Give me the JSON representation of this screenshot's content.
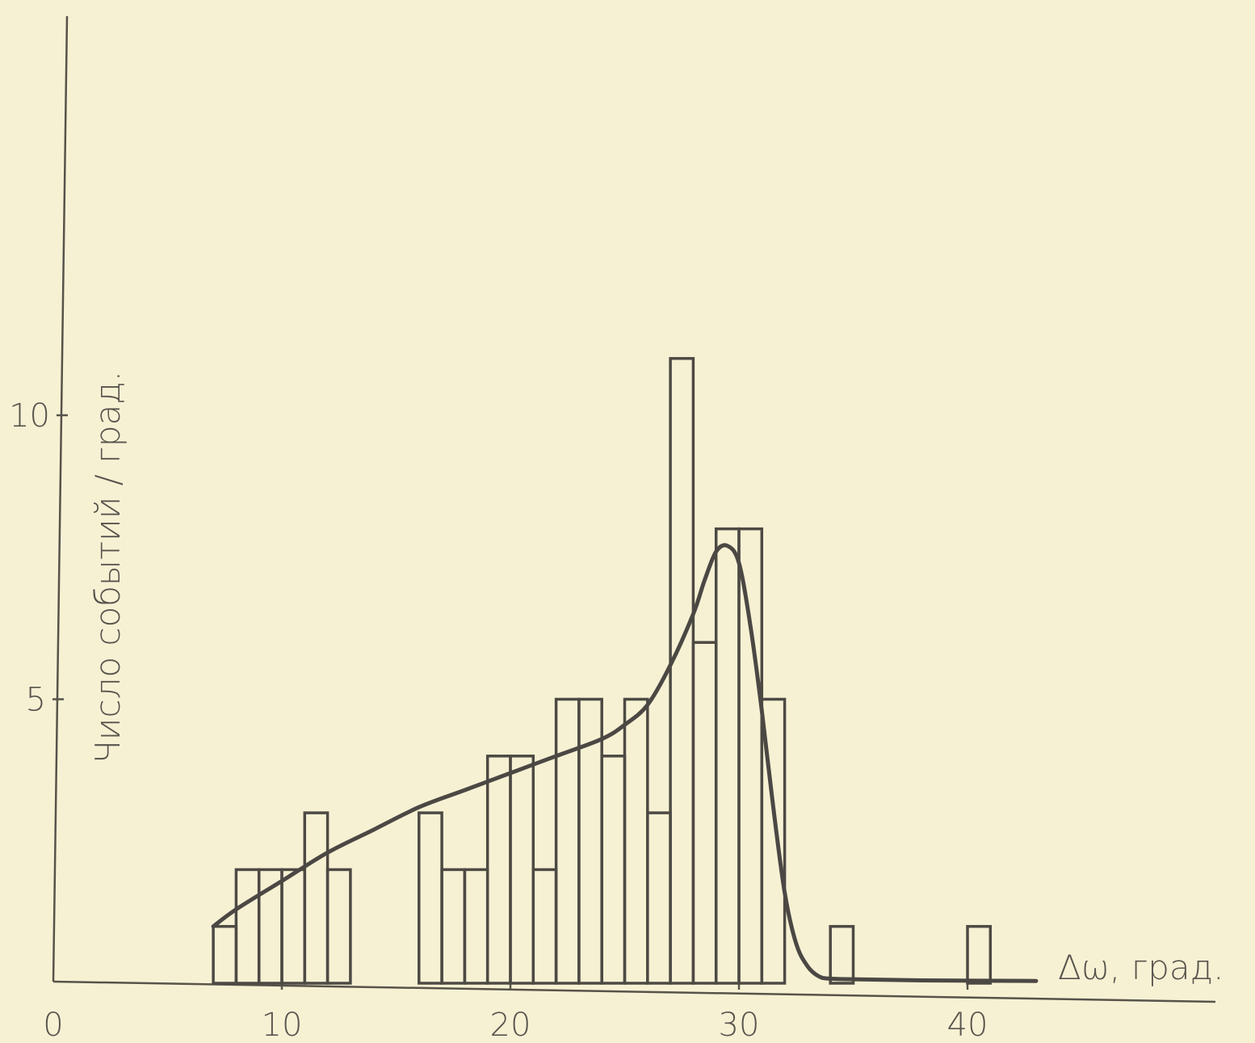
{
  "chart_data": {
    "type": "bar",
    "xlabel": "Δω, град.",
    "ylabel": "Число событий / град.",
    "xlim": [
      0,
      52
    ],
    "ylim": [
      0,
      17.4
    ],
    "x_ticks": [
      {
        "value": 0,
        "label": "0"
      },
      {
        "value": 10,
        "label": "10"
      },
      {
        "value": 20,
        "label": "20"
      },
      {
        "value": 30,
        "label": "30"
      },
      {
        "value": 40,
        "label": "40"
      }
    ],
    "y_ticks": [
      {
        "value": 5,
        "label": "5"
      },
      {
        "value": 10,
        "label": "10"
      }
    ],
    "bin_width": 1,
    "bins": [
      {
        "x0": 7,
        "value": 1
      },
      {
        "x0": 8,
        "value": 2
      },
      {
        "x0": 9,
        "value": 2
      },
      {
        "x0": 10,
        "value": 2
      },
      {
        "x0": 11,
        "value": 3
      },
      {
        "x0": 12,
        "value": 2
      },
      {
        "x0": 13,
        "value": 0
      },
      {
        "x0": 14,
        "value": 0
      },
      {
        "x0": 15,
        "value": 0
      },
      {
        "x0": 16,
        "value": 3
      },
      {
        "x0": 17,
        "value": 2
      },
      {
        "x0": 18,
        "value": 2
      },
      {
        "x0": 19,
        "value": 4
      },
      {
        "x0": 20,
        "value": 4
      },
      {
        "x0": 21,
        "value": 2
      },
      {
        "x0": 22,
        "value": 5
      },
      {
        "x0": 23,
        "value": 5
      },
      {
        "x0": 24,
        "value": 4
      },
      {
        "x0": 25,
        "value": 5
      },
      {
        "x0": 26,
        "value": 3
      },
      {
        "x0": 27,
        "value": 11
      },
      {
        "x0": 28,
        "value": 6
      },
      {
        "x0": 29,
        "value": 8
      },
      {
        "x0": 30,
        "value": 8
      },
      {
        "x0": 31,
        "value": 5
      },
      {
        "x0": 32,
        "value": 0
      },
      {
        "x0": 33,
        "value": 0
      },
      {
        "x0": 34,
        "value": 1
      },
      {
        "x0": 35,
        "value": 0
      },
      {
        "x0": 36,
        "value": 0
      },
      {
        "x0": 37,
        "value": 0
      },
      {
        "x0": 38,
        "value": 0
      },
      {
        "x0": 39,
        "value": 0
      },
      {
        "x0": 40,
        "value": 1
      }
    ],
    "fit_curve": {
      "x": [
        7,
        8,
        10,
        12,
        14,
        16,
        18,
        20,
        22,
        24,
        25,
        26,
        27,
        28,
        28.5,
        29,
        29.5,
        30,
        30.5,
        31,
        31.5,
        32,
        32.5,
        33,
        33.5,
        34,
        35,
        38,
        43
      ],
      "y": [
        1.0,
        1.3,
        1.8,
        2.3,
        2.7,
        3.1,
        3.4,
        3.7,
        4.0,
        4.3,
        4.55,
        4.9,
        5.6,
        6.5,
        7.1,
        7.6,
        7.7,
        7.4,
        6.3,
        4.8,
        3.1,
        1.6,
        0.7,
        0.3,
        0.12,
        0.08,
        0.07,
        0.05,
        0.04
      ]
    },
    "grid": false,
    "legend": "none"
  }
}
